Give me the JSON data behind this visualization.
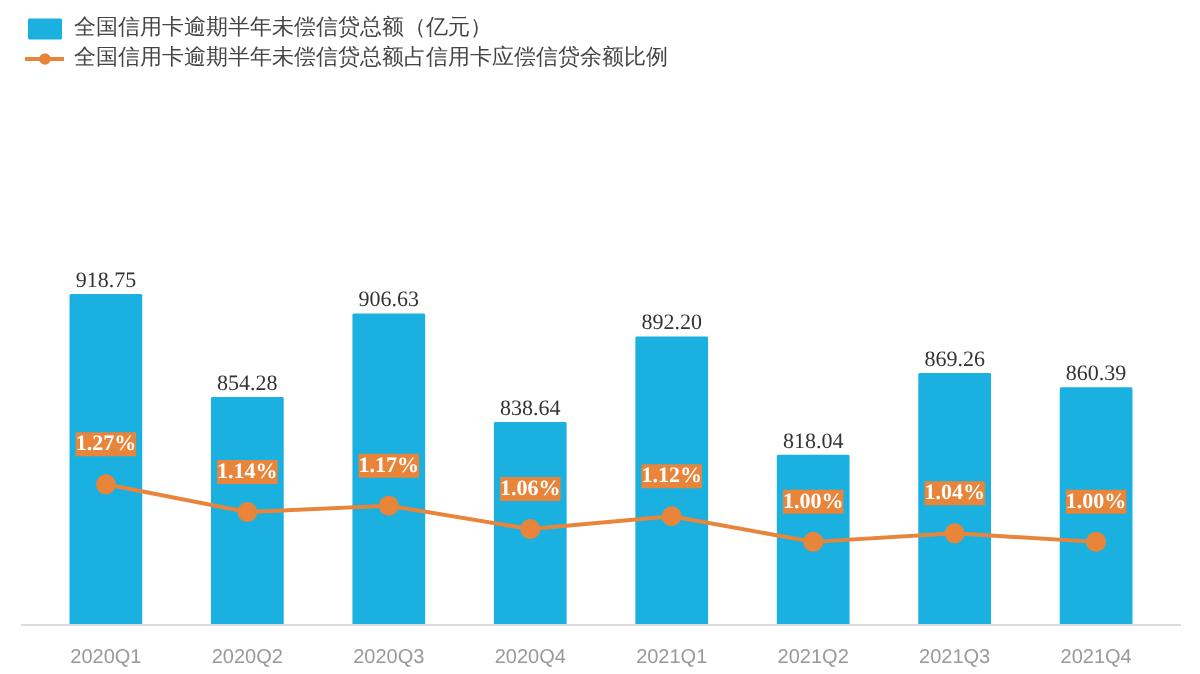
{
  "chart_data": {
    "type": "bar",
    "categories": [
      "2020Q1",
      "2020Q2",
      "2020Q3",
      "2020Q4",
      "2021Q1",
      "2021Q2",
      "2021Q3",
      "2021Q4"
    ],
    "series": [
      {
        "name": "全国信用卡逾期半年未偿信贷总额（亿元）",
        "color": "#1ab0e0",
        "values": [
          918.75,
          854.28,
          906.63,
          838.64,
          892.2,
          818.04,
          869.26,
          860.39
        ],
        "value_labels": [
          "918.75",
          "854.28",
          "906.63",
          "838.64",
          "892.20",
          "818.04",
          "869.26",
          "860.39"
        ]
      },
      {
        "name": "全国信用卡逾期半年未偿信贷总额占信用卡应偿信贷余额比例",
        "type": "line",
        "axis": "y2",
        "color": "#e8853a",
        "marker": "circle",
        "values": [
          1.27,
          1.14,
          1.17,
          1.06,
          1.12,
          1.0,
          1.04,
          1.0
        ],
        "value_labels": [
          "1.27%",
          "1.14%",
          "1.17%",
          "1.06%",
          "1.12%",
          "1.00%",
          "1.04%",
          "1.00%"
        ]
      }
    ],
    "ylim": [
      712,
      1098
    ],
    "y2lim": [
      0.61,
      3.5
    ],
    "tick_labels": "x",
    "grid": false,
    "legend": "top left"
  }
}
